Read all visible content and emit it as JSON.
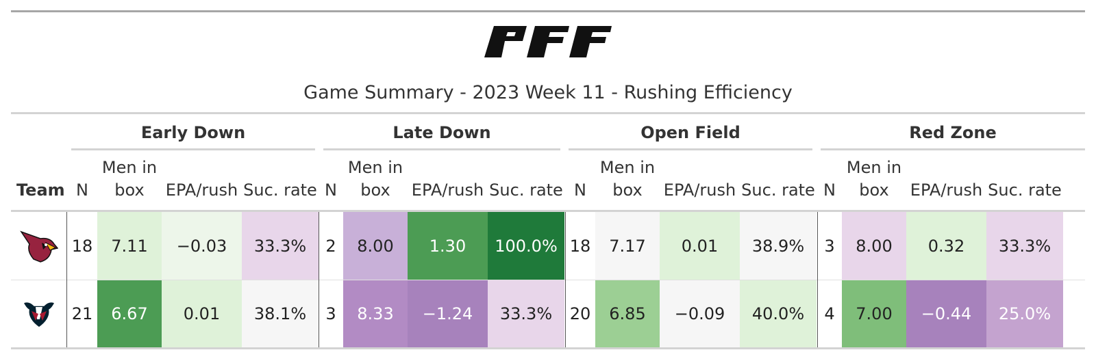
{
  "header": {
    "logo_text": "PFF",
    "title": "Game Summary - 2023 Week 11 - Rushing Efficiency"
  },
  "groups": [
    "Early Down",
    "Late Down",
    "Open Field",
    "Red Zone"
  ],
  "columns": {
    "team": "Team",
    "n": "N",
    "box_line1": "Men in",
    "box_line2": "box",
    "epa": "EPA/rush",
    "suc": "Suc. rate"
  },
  "rows": [
    {
      "team": "Arizona Cardinals",
      "team_icon": "cardinals-logo-icon",
      "values": [
        {
          "n": "18",
          "box": "7.11",
          "epa": "−0.03",
          "suc": "33.3%"
        },
        {
          "n": "2",
          "box": "8.00",
          "epa": "1.30",
          "suc": "100.0%"
        },
        {
          "n": "18",
          "box": "7.17",
          "epa": "0.01",
          "suc": "38.9%"
        },
        {
          "n": "3",
          "box": "8.00",
          "epa": "0.32",
          "suc": "33.3%"
        }
      ]
    },
    {
      "team": "Houston Texans",
      "team_icon": "texans-logo-icon",
      "values": [
        {
          "n": "21",
          "box": "6.67",
          "epa": "0.01",
          "suc": "38.1%"
        },
        {
          "n": "3",
          "box": "8.33",
          "epa": "−1.24",
          "suc": "33.3%"
        },
        {
          "n": "20",
          "box": "6.85",
          "epa": "−0.09",
          "suc": "40.0%"
        },
        {
          "n": "4",
          "box": "7.00",
          "epa": "−0.44",
          "suc": "25.0%"
        }
      ]
    }
  ],
  "cell_colors": [
    [
      [
        "#dff2d9",
        "#edf6ea",
        "#e8d6ea"
      ],
      [
        "#c8b0d8",
        "#4c9c54",
        "#1f7a3a"
      ],
      [
        "#f6f6f6",
        "#dff2d9",
        "#f6f6f6"
      ],
      [
        "#e8d6ea",
        "#dff2d9",
        "#e8d6ea"
      ]
    ],
    [
      [
        "#4c9c54",
        "#dff2d9",
        "#f6f6f6"
      ],
      [
        "#b28bc4",
        "#a782bc",
        "#e8d6ea"
      ],
      [
        "#9ccf94",
        "#f6f6f6",
        "#dff2d9"
      ],
      [
        "#7fbe7a",
        "#a782bc",
        "#c4a3cf"
      ]
    ]
  ],
  "light_text_cells": [
    [
      [
        false,
        false,
        false
      ],
      [
        false,
        true,
        true
      ],
      [
        false,
        false,
        false
      ],
      [
        false,
        false,
        false
      ]
    ],
    [
      [
        true,
        false,
        false
      ],
      [
        true,
        true,
        false
      ],
      [
        false,
        false,
        false
      ],
      [
        false,
        true,
        true
      ]
    ]
  ]
}
